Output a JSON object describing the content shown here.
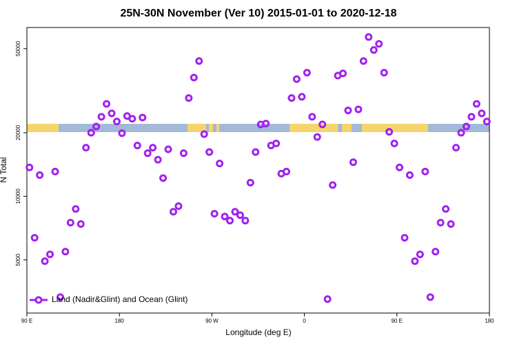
{
  "chart_data": {
    "type": "scatter",
    "title": "25N-30N November (Ver 10)   2015-01-01 to 2020-12-18",
    "xlabel": "Longitude (deg E)",
    "ylabel": "N Total",
    "log_y": true,
    "legend": "lower left",
    "xlim": [
      90,
      540
    ],
    "ylim": [
      2800,
      63000
    ],
    "xticks": [
      {
        "value": 90,
        "label": "90 E"
      },
      180,
      {
        "value": 270,
        "label": "90 W"
      },
      {
        "value": 360,
        "label": "0"
      },
      {
        "value": 450,
        "label": "90 E"
      },
      {
        "value": 540,
        "label": "180"
      }
    ],
    "yticks": [
      5000,
      10000,
      20000,
      50000
    ],
    "series": [
      {
        "name": "Land (Nadir&Glint) and Ocean (Glint)",
        "color": "#a020f0",
        "x": [
          92.5,
          97.5,
          102.5,
          107.5,
          112.5,
          117.5,
          122.5,
          127.5,
          132.5,
          137.5,
          142.5,
          147.5,
          152.5,
          157.5,
          162.5,
          167.5,
          172.5,
          177.5,
          182.5,
          187.5,
          192.5,
          197.5,
          202.5,
          207.5,
          212.5,
          217.5,
          222.5,
          227.5,
          232.5,
          237.5,
          242.5,
          247.5,
          252.5,
          257.5,
          262.5,
          267.5,
          272.5,
          277.5,
          282.5,
          287.5,
          292.5,
          297.5,
          302.5,
          307.5,
          312.5,
          317.5,
          322.5,
          327.5,
          332.5,
          337.5,
          342.5,
          347.5,
          352.5,
          357.5,
          362.5,
          367.5,
          372.5,
          377.5,
          382.5,
          387.5,
          392.5,
          397.5,
          402.5,
          407.5,
          412.5,
          417.5,
          422.5,
          427.5,
          432.5,
          437.5,
          442.5,
          447.5,
          452.5,
          457.5,
          462.5,
          467.5,
          472.5,
          477.5,
          482.5,
          487.5,
          492.5,
          497.5,
          502.5,
          507.5,
          512.5,
          517.5,
          522.5,
          527.5,
          532.5,
          537.5
        ],
        "values": [
          13700,
          6360,
          12600,
          4930,
          5310,
          13100,
          3330,
          5470,
          7500,
          8710,
          7390,
          17000,
          20000,
          21400,
          23800,
          27400,
          24700,
          22600,
          19900,
          24000,
          23300,
          17400,
          23600,
          16000,
          17000,
          14900,
          12200,
          16700,
          8450,
          8980,
          16000,
          29200,
          36500,
          43700,
          19700,
          16200,
          8270,
          14300,
          8020,
          7670,
          8450,
          8140,
          7670,
          11600,
          16200,
          21900,
          22100,
          17400,
          17800,
          12800,
          13100,
          29200,
          35900,
          29600,
          38500,
          23800,
          19100,
          21900,
          3260,
          11300,
          37300,
          38200,
          25500,
          14500,
          25800,
          43700,
          56800,
          49300,
          52700,
          38500,
          20200,
          17800,
          13700,
          6360,
          12600,
          4930,
          5310,
          13100,
          3330,
          5470,
          7500,
          8710,
          7390,
          17000,
          20000,
          21400,
          23800,
          27400,
          24700,
          22600
        ]
      }
    ]
  }
}
